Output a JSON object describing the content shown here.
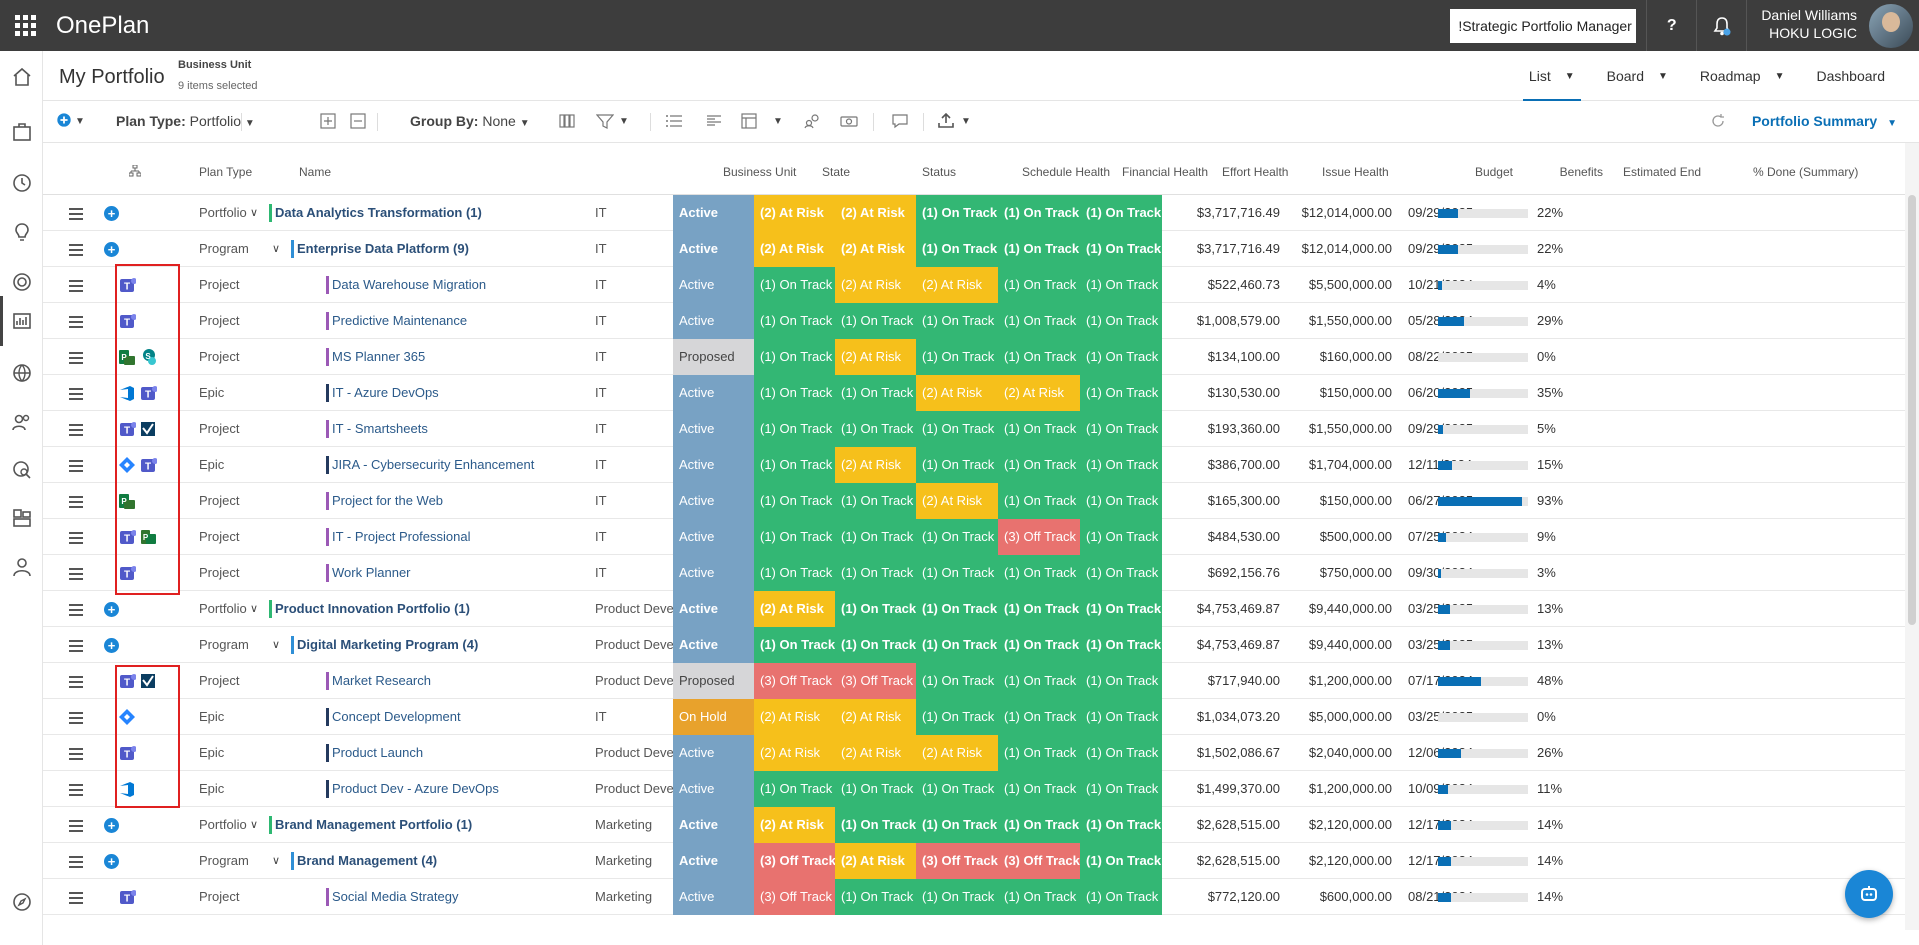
{
  "app": {
    "name": "OnePlan",
    "role": "!Strategic Portfolio Manager",
    "user_name": "Daniel Williams",
    "company": "HOKU LOGIC",
    "help_label": "?"
  },
  "header": {
    "title": "My Portfolio",
    "bu_label": "Business Unit",
    "bu_value": "9 items selected"
  },
  "views": [
    {
      "label": "List"
    },
    {
      "label": "Board"
    },
    {
      "label": "Roadmap"
    },
    {
      "label": "Dashboard"
    }
  ],
  "toolbar": {
    "plan_type_label": "Plan Type:",
    "plan_type_value": "Portfolio",
    "group_by_label": "Group By:",
    "group_by_value": "None",
    "summary_label": "Portfolio Summary"
  },
  "columns": {
    "plan_type": "Plan Type",
    "name": "Name",
    "bu": "Business Unit",
    "state": "State",
    "status": "Status",
    "schedule": "Schedule Health",
    "financial": "Financial Health",
    "effort": "Effort Health",
    "issue": "Issue Health",
    "budget": "Budget",
    "benefits": "Benefits",
    "end": "Estimated End",
    "done": "% Done (Summary)"
  },
  "colors": {
    "active": "#78a2c4",
    "proposed": "#d6d6d8",
    "onhold": "#e8a22c",
    "ontrack": "#33b774",
    "atrisk": "#f6c01b",
    "offtrack": "#e8726f",
    "accent": "#0a6fb5"
  },
  "rows": [
    {
      "level": 0,
      "type": "Portfolio",
      "name": "Data Analytics Transformation (1)",
      "bu": "IT",
      "state": "Active",
      "status": "(2) At Risk",
      "schedule": "(2) At Risk",
      "financial": "(1) On Track",
      "effort": "(1) On Track",
      "issue": "(1) On Track",
      "budget": "$3,717,716.49",
      "benefits": "$12,014,000.00",
      "end": "09/29/2025",
      "done": 22,
      "done_label": "22%"
    },
    {
      "level": 1,
      "type": "Program",
      "name": "Enterprise Data Platform (9)",
      "bu": "IT",
      "state": "Active",
      "status": "(2) At Risk",
      "schedule": "(2) At Risk",
      "financial": "(1) On Track",
      "effort": "(1) On Track",
      "issue": "(1) On Track",
      "budget": "$3,717,716.49",
      "benefits": "$12,014,000.00",
      "end": "09/29/2025",
      "done": 22,
      "done_label": "22%"
    },
    {
      "level": 2,
      "type": "Project",
      "name": "Data Warehouse Migration",
      "bu": "IT",
      "state": "Active",
      "status": "(1) On Track",
      "schedule": "(2) At Risk",
      "financial": "(2) At Risk",
      "effort": "(1) On Track",
      "issue": "(1) On Track",
      "budget": "$522,460.73",
      "benefits": "$5,500,000.00",
      "end": "10/21/2024",
      "done": 4,
      "done_label": "4%",
      "icons": [
        "teams-icon"
      ]
    },
    {
      "level": 2,
      "type": "Project",
      "name": "Predictive Maintenance",
      "bu": "IT",
      "state": "Active",
      "status": "(1) On Track",
      "schedule": "(1) On Track",
      "financial": "(1) On Track",
      "effort": "(1) On Track",
      "issue": "(1) On Track",
      "budget": "$1,008,579.00",
      "benefits": "$1,550,000.00",
      "end": "05/28/2024",
      "done": 29,
      "done_label": "29%",
      "icons": [
        "teams-icon"
      ]
    },
    {
      "level": 2,
      "type": "Project",
      "name": "MS Planner 365",
      "bu": "IT",
      "state": "Proposed",
      "status": "(1) On Track",
      "schedule": "(2) At Risk",
      "financial": "(1) On Track",
      "effort": "(1) On Track",
      "issue": "(1) On Track",
      "budget": "$134,100.00",
      "benefits": "$160,000.00",
      "end": "08/22/2025",
      "done": 0,
      "done_label": "0%",
      "icons": [
        "planner-icon",
        "sharepoint-icon"
      ]
    },
    {
      "level": 2,
      "type": "Epic",
      "name": "IT - Azure DevOps",
      "bu": "IT",
      "state": "Active",
      "status": "(1) On Track",
      "schedule": "(1) On Track",
      "financial": "(2) At Risk",
      "effort": "(2) At Risk",
      "issue": "(1) On Track",
      "budget": "$130,530.00",
      "benefits": "$150,000.00",
      "end": "06/20/2025",
      "done": 35,
      "done_label": "35%",
      "icons": [
        "azure-devops-icon",
        "teams-icon"
      ]
    },
    {
      "level": 2,
      "type": "Project",
      "name": "IT - Smartsheets",
      "bu": "IT",
      "state": "Active",
      "status": "(1) On Track",
      "schedule": "(1) On Track",
      "financial": "(1) On Track",
      "effort": "(1) On Track",
      "issue": "(1) On Track",
      "budget": "$193,360.00",
      "benefits": "$1,550,000.00",
      "end": "09/29/2025",
      "done": 5,
      "done_label": "5%",
      "icons": [
        "teams-icon",
        "smartsheet-icon"
      ]
    },
    {
      "level": 2,
      "type": "Epic",
      "name": "JIRA - Cybersecurity Enhancement",
      "bu": "IT",
      "state": "Active",
      "status": "(1) On Track",
      "schedule": "(2) At Risk",
      "financial": "(1) On Track",
      "effort": "(1) On Track",
      "issue": "(1) On Track",
      "budget": "$386,700.00",
      "benefits": "$1,704,000.00",
      "end": "12/11/2024",
      "done": 15,
      "done_label": "15%",
      "icons": [
        "jira-icon",
        "teams-icon"
      ]
    },
    {
      "level": 2,
      "type": "Project",
      "name": "Project for the Web",
      "bu": "IT",
      "state": "Active",
      "status": "(1) On Track",
      "schedule": "(1) On Track",
      "financial": "(2) At Risk",
      "effort": "(1) On Track",
      "issue": "(1) On Track",
      "budget": "$165,300.00",
      "benefits": "$150,000.00",
      "end": "06/27/2025",
      "done": 93,
      "done_label": "93%",
      "icons": [
        "planner-icon"
      ]
    },
    {
      "level": 2,
      "type": "Project",
      "name": "IT - Project Professional",
      "bu": "IT",
      "state": "Active",
      "status": "(1) On Track",
      "schedule": "(1) On Track",
      "financial": "(1) On Track",
      "effort": "(3) Off Track",
      "issue": "(1) On Track",
      "budget": "$484,530.00",
      "benefits": "$500,000.00",
      "end": "07/25/2024",
      "done": 9,
      "done_label": "9%",
      "icons": [
        "teams-icon",
        "project-icon"
      ]
    },
    {
      "level": 2,
      "type": "Project",
      "name": "Work Planner",
      "bu": "IT",
      "state": "Active",
      "status": "(1) On Track",
      "schedule": "(1) On Track",
      "financial": "(1) On Track",
      "effort": "(1) On Track",
      "issue": "(1) On Track",
      "budget": "$692,156.76",
      "benefits": "$750,000.00",
      "end": "09/30/2024",
      "done": 3,
      "done_label": "3%",
      "icons": [
        "teams-icon"
      ]
    },
    {
      "level": 0,
      "type": "Portfolio",
      "name": "Product Innovation Portfolio (1)",
      "bu": "Product Develop",
      "state": "Active",
      "status": "(2) At Risk",
      "schedule": "(1) On Track",
      "financial": "(1) On Track",
      "effort": "(1) On Track",
      "issue": "(1) On Track",
      "budget": "$4,753,469.87",
      "benefits": "$9,440,000.00",
      "end": "03/25/2025",
      "done": 13,
      "done_label": "13%"
    },
    {
      "level": 1,
      "type": "Program",
      "name": "Digital Marketing Program (4)",
      "bu": "Product Develop",
      "state": "Active",
      "status": "(1) On Track",
      "schedule": "(1) On Track",
      "financial": "(1) On Track",
      "effort": "(1) On Track",
      "issue": "(1) On Track",
      "budget": "$4,753,469.87",
      "benefits": "$9,440,000.00",
      "end": "03/25/2025",
      "done": 13,
      "done_label": "13%"
    },
    {
      "level": 2,
      "type": "Project",
      "name": "Market Research",
      "bu": "Product Develop",
      "state": "Proposed",
      "status": "(3) Off Track",
      "schedule": "(3) Off Track",
      "financial": "(1) On Track",
      "effort": "(1) On Track",
      "issue": "(1) On Track",
      "budget": "$717,940.00",
      "benefits": "$1,200,000.00",
      "end": "07/17/2024",
      "done": 48,
      "done_label": "48%",
      "icons": [
        "teams-icon",
        "smartsheet-icon"
      ]
    },
    {
      "level": 2,
      "type": "Epic",
      "name": "Concept Development",
      "bu": "IT",
      "state": "On Hold",
      "status": "(2) At Risk",
      "schedule": "(2) At Risk",
      "financial": "(1) On Track",
      "effort": "(1) On Track",
      "issue": "(1) On Track",
      "budget": "$1,034,073.20",
      "benefits": "$5,000,000.00",
      "end": "03/25/2025",
      "done": 0,
      "done_label": "0%",
      "icons": [
        "jira-icon"
      ]
    },
    {
      "level": 2,
      "type": "Epic",
      "name": "Product Launch",
      "bu": "Product Develop",
      "state": "Active",
      "status": "(2) At Risk",
      "schedule": "(2) At Risk",
      "financial": "(2) At Risk",
      "effort": "(1) On Track",
      "issue": "(1) On Track",
      "budget": "$1,502,086.67",
      "benefits": "$2,040,000.00",
      "end": "12/06/2024",
      "done": 26,
      "done_label": "26%",
      "icons": [
        "teams-icon"
      ]
    },
    {
      "level": 2,
      "type": "Epic",
      "name": "Product Dev - Azure DevOps",
      "bu": "Product Develop",
      "state": "Active",
      "status": "(1) On Track",
      "schedule": "(1) On Track",
      "financial": "(1) On Track",
      "effort": "(1) On Track",
      "issue": "(1) On Track",
      "budget": "$1,499,370.00",
      "benefits": "$1,200,000.00",
      "end": "10/09/2024",
      "done": 11,
      "done_label": "11%",
      "icons": [
        "azure-devops-icon"
      ]
    },
    {
      "level": 0,
      "type": "Portfolio",
      "name": "Brand Management Portfolio (1)",
      "bu": "Marketing",
      "state": "Active",
      "status": "(2) At Risk",
      "schedule": "(1) On Track",
      "financial": "(1) On Track",
      "effort": "(1) On Track",
      "issue": "(1) On Track",
      "budget": "$2,628,515.00",
      "benefits": "$2,120,000.00",
      "end": "12/17/2024",
      "done": 14,
      "done_label": "14%"
    },
    {
      "level": 1,
      "type": "Program",
      "name": "Brand Management (4)",
      "bu": "Marketing",
      "state": "Active",
      "status": "(3) Off Track",
      "schedule": "(2) At Risk",
      "financial": "(3) Off Track",
      "effort": "(3) Off Track",
      "issue": "(1) On Track",
      "budget": "$2,628,515.00",
      "benefits": "$2,120,000.00",
      "end": "12/17/2024",
      "done": 14,
      "done_label": "14%"
    },
    {
      "level": 2,
      "type": "Project",
      "name": "Social Media Strategy",
      "bu": "Marketing",
      "state": "Active",
      "status": "(3) Off Track",
      "schedule": "(1) On Track",
      "financial": "(1) On Track",
      "effort": "(1) On Track",
      "issue": "(1) On Track",
      "budget": "$772,120.00",
      "benefits": "$600,000.00",
      "end": "08/21/2024",
      "done": 14,
      "done_label": "14%",
      "icons": [
        "teams-icon"
      ]
    }
  ]
}
